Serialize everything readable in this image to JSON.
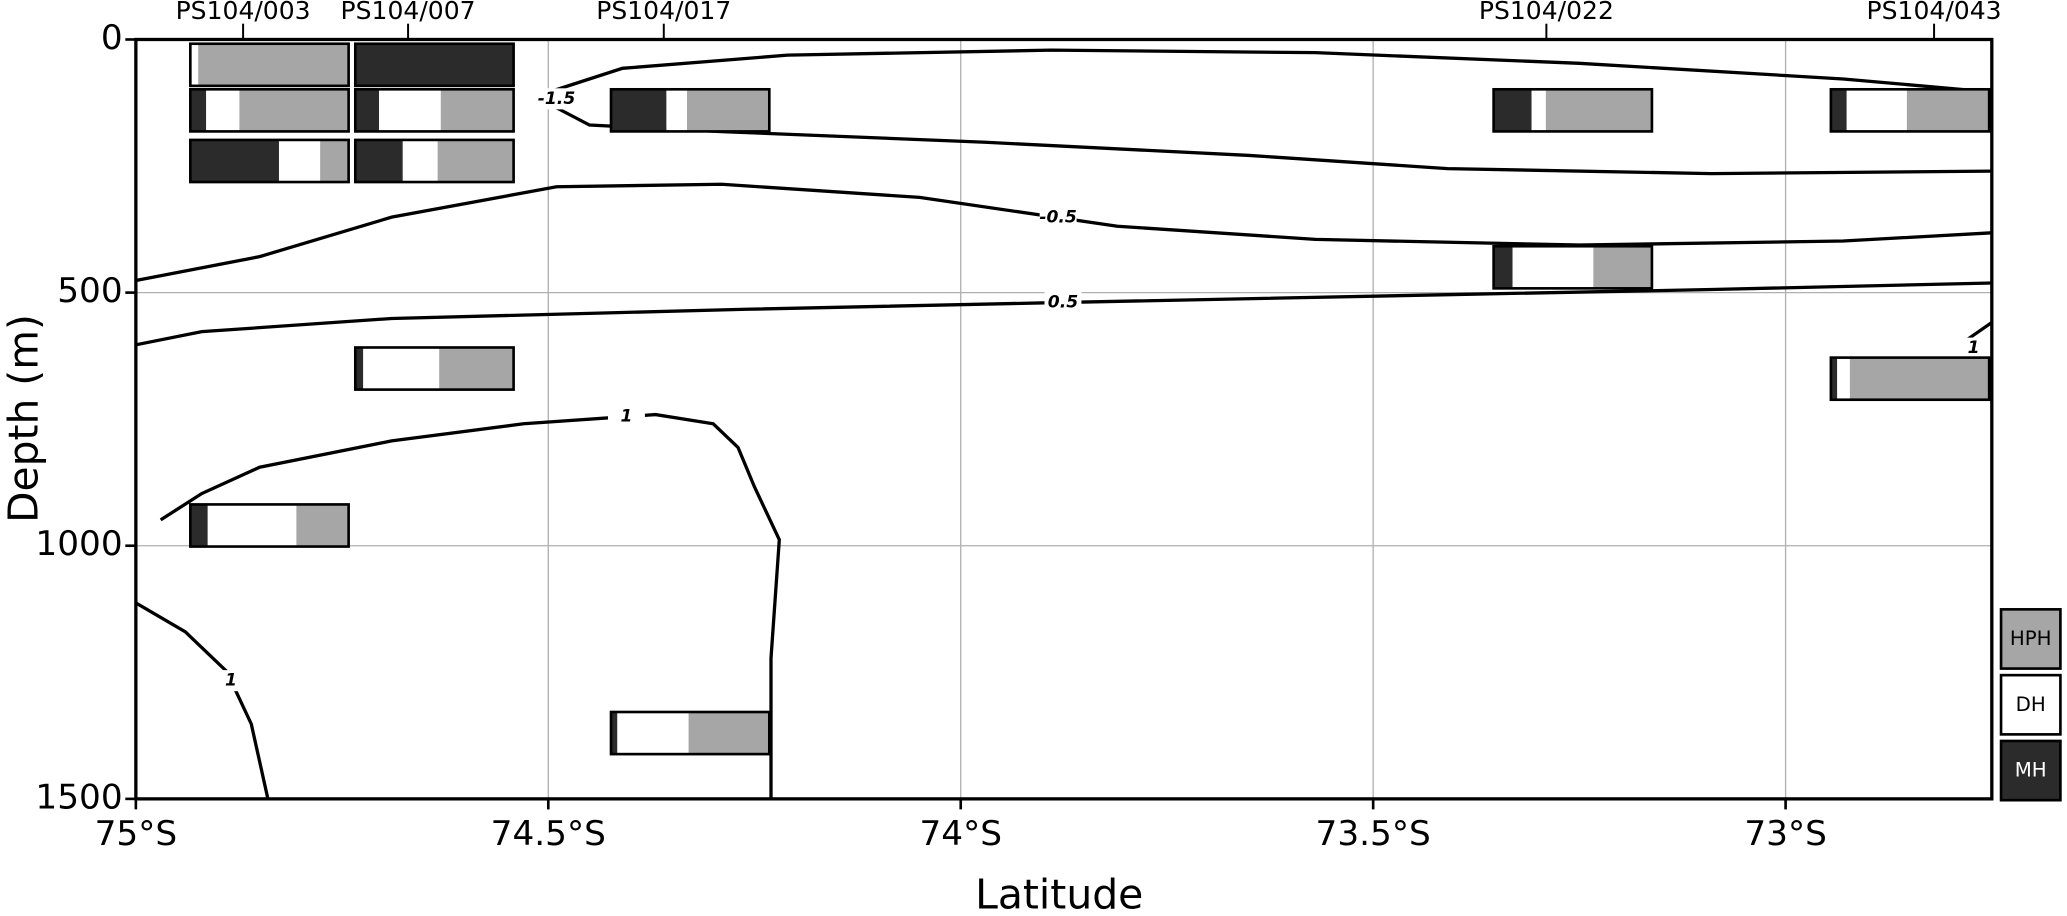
{
  "chart_data": {
    "type": "section",
    "x_label": "Latitude",
    "y_label": "Depth (m)",
    "xlim": [
      -75,
      -72.75
    ],
    "ylim": [
      1500,
      0
    ],
    "xticks": [
      {
        "value": -75,
        "label": "75°S"
      },
      {
        "value": -74.5,
        "label": "74.5°S"
      },
      {
        "value": -74,
        "label": "74°S"
      },
      {
        "value": -73.5,
        "label": "73.5°S"
      },
      {
        "value": -73,
        "label": "73°S"
      }
    ],
    "yticks": [
      0,
      500,
      1000,
      1500
    ],
    "grid": true,
    "series": [
      {
        "name": "MH",
        "color": "#2b2b2b"
      },
      {
        "name": "DH",
        "color": "#ffffff"
      },
      {
        "name": "HPH",
        "color": "#a6a6a6"
      }
    ],
    "stations": [
      {
        "name": "PS104/003",
        "lat": -74.87,
        "samples": [
          {
            "depth": 50,
            "values": [
              0,
              5,
              95
            ]
          },
          {
            "depth": 140,
            "values": [
              10,
              21,
              69
            ]
          },
          {
            "depth": 240,
            "values": [
              56,
              26,
              18
            ]
          },
          {
            "depth": 960,
            "values": [
              11,
              56,
              33
            ]
          }
        ]
      },
      {
        "name": "PS104/007",
        "lat": -74.67,
        "samples": [
          {
            "depth": 50,
            "values": [
              100,
              0,
              0
            ]
          },
          {
            "depth": 140,
            "values": [
              15,
              39,
              46
            ]
          },
          {
            "depth": 240,
            "values": [
              30,
              22,
              48
            ]
          },
          {
            "depth": 650,
            "values": [
              5,
              48,
              47
            ]
          }
        ]
      },
      {
        "name": "PS104/017",
        "lat": -74.36,
        "samples": [
          {
            "depth": 140,
            "values": [
              35,
              13,
              52
            ]
          },
          {
            "depth": 1370,
            "values": [
              4,
              45,
              51
            ]
          }
        ]
      },
      {
        "name": "PS104/022",
        "lat": -73.29,
        "samples": [
          {
            "depth": 140,
            "values": [
              24,
              9,
              67
            ]
          },
          {
            "depth": 450,
            "values": [
              12,
              51,
              37
            ]
          }
        ]
      },
      {
        "name": "PS104/043",
        "lat": -72.82,
        "samples": [
          {
            "depth": 140,
            "values": [
              10,
              38,
              52
            ]
          },
          {
            "depth": 670,
            "values": [
              4,
              8,
              88
            ]
          }
        ]
      }
    ],
    "contours": [
      {
        "level": -1.5,
        "lat": [
          -72.75,
          -72.93,
          -73.25,
          -73.57,
          -73.89,
          -74.21,
          -74.41,
          -74.49,
          -74.49,
          -74.45,
          -74.29,
          -73.97,
          -73.65,
          -73.41,
          -73.09,
          -72.75
        ],
        "depth": [
          104,
          78,
          47,
          26,
          21,
          31,
          57,
          99,
          135,
          169,
          182,
          203,
          229,
          255,
          265,
          260
        ]
      },
      {
        "level": -0.5,
        "lat": [
          -75,
          -74.85,
          -74.69,
          -74.49,
          -74.29,
          -74.05,
          -73.81,
          -73.57,
          -73.25,
          -72.93,
          -72.75
        ],
        "depth": [
          476,
          429,
          351,
          291,
          286,
          312,
          369,
          395,
          406,
          398,
          382
        ]
      },
      {
        "level": 0.5,
        "lat": [
          -75,
          -74.92,
          -74.69,
          -74.45,
          -74.26,
          -73.89,
          -73.41,
          -73.09,
          -72.75
        ],
        "depth": [
          603,
          577,
          551,
          541,
          533,
          520,
          504,
          494,
          481
        ]
      },
      {
        "level": 1,
        "lat": [
          -74.97,
          -74.92,
          -74.85,
          -74.69,
          -74.53,
          -74.37,
          -74.3,
          -74.27,
          -74.25,
          -74.22,
          -74.23,
          -74.23
        ],
        "depth": [
          949,
          897,
          845,
          793,
          759,
          741,
          759,
          806,
          884,
          988,
          1222,
          1500
        ]
      },
      {
        "level": 1,
        "lat": [
          -75,
          -74.94,
          -74.89,
          -74.86,
          -74.84
        ],
        "depth": [
          1113,
          1170,
          1248,
          1352,
          1500
        ]
      },
      {
        "level": 1,
        "lat": [
          -72.75,
          -72.78,
          -72.77,
          -72.78,
          -72.75
        ],
        "depth": [
          559,
          593,
          614,
          629,
          650
        ]
      }
    ]
  }
}
